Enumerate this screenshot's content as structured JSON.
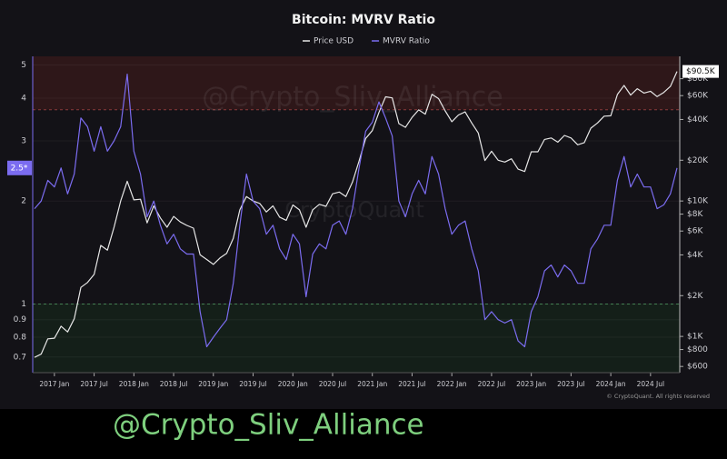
{
  "chart_data": {
    "type": "line",
    "title": "Bitcoin: MVRV Ratio",
    "log_scale": true,
    "grid": true,
    "legend": "top",
    "x": [
      "2016-10",
      "2016-11",
      "2016-12",
      "2017-01",
      "2017-02",
      "2017-03",
      "2017-04",
      "2017-05",
      "2017-06",
      "2017-07",
      "2017-08",
      "2017-09",
      "2017-10",
      "2017-11",
      "2017-12",
      "2018-01",
      "2018-02",
      "2018-03",
      "2018-04",
      "2018-05",
      "2018-06",
      "2018-07",
      "2018-08",
      "2018-09",
      "2018-10",
      "2018-11",
      "2018-12",
      "2019-01",
      "2019-02",
      "2019-03",
      "2019-04",
      "2019-05",
      "2019-06",
      "2019-07",
      "2019-08",
      "2019-09",
      "2019-10",
      "2019-11",
      "2019-12",
      "2020-01",
      "2020-02",
      "2020-03",
      "2020-04",
      "2020-05",
      "2020-06",
      "2020-07",
      "2020-08",
      "2020-09",
      "2020-10",
      "2020-11",
      "2020-12",
      "2021-01",
      "2021-02",
      "2021-03",
      "2021-04",
      "2021-05",
      "2021-06",
      "2021-07",
      "2021-08",
      "2021-09",
      "2021-10",
      "2021-11",
      "2021-12",
      "2022-01",
      "2022-02",
      "2022-03",
      "2022-04",
      "2022-05",
      "2022-06",
      "2022-07",
      "2022-08",
      "2022-09",
      "2022-10",
      "2022-11",
      "2022-12",
      "2023-01",
      "2023-02",
      "2023-03",
      "2023-04",
      "2023-05",
      "2023-06",
      "2023-07",
      "2023-08",
      "2023-09",
      "2023-10",
      "2023-11",
      "2023-12",
      "2024-01",
      "2024-02",
      "2024-03",
      "2024-04",
      "2024-05",
      "2024-06",
      "2024-07",
      "2024-08",
      "2024-09",
      "2024-10",
      "2024-11"
    ],
    "xlim": [
      "2016-10",
      "2024-11"
    ],
    "xticks": [
      {
        "value": "2017-01",
        "label": "2017 Jan"
      },
      {
        "value": "2017-07",
        "label": "2017 Jul"
      },
      {
        "value": "2018-01",
        "label": "2018 Jan"
      },
      {
        "value": "2018-07",
        "label": "2018 Jul"
      },
      {
        "value": "2019-01",
        "label": "2019 Jan"
      },
      {
        "value": "2019-07",
        "label": "2019 Jul"
      },
      {
        "value": "2020-01",
        "label": "2020 Jan"
      },
      {
        "value": "2020-07",
        "label": "2020 Jul"
      },
      {
        "value": "2021-01",
        "label": "2021 Jan"
      },
      {
        "value": "2021-07",
        "label": "2021 Jul"
      },
      {
        "value": "2022-01",
        "label": "2022 Jan"
      },
      {
        "value": "2022-07",
        "label": "2022 Jul"
      },
      {
        "value": "2023-01",
        "label": "2023 Jan"
      },
      {
        "value": "2023-07",
        "label": "2023 Jul"
      },
      {
        "value": "2024-01",
        "label": "2024 Jan"
      },
      {
        "value": "2024-07",
        "label": "2024 Jul"
      }
    ],
    "ylim": [
      0.63,
      5.3
    ],
    "yticks": [
      0.7,
      0.8,
      0.9,
      1,
      2,
      3,
      4,
      5
    ],
    "y2lim": [
      540,
      117000
    ],
    "y2ticks": [
      {
        "value": 600,
        "label": "$600"
      },
      {
        "value": 800,
        "label": "$800"
      },
      {
        "value": 1000,
        "label": "$1K"
      },
      {
        "value": 2000,
        "label": "$2K"
      },
      {
        "value": 4000,
        "label": "$4K"
      },
      {
        "value": 6000,
        "label": "$6K"
      },
      {
        "value": 8000,
        "label": "$8K"
      },
      {
        "value": 10000,
        "label": "$10K"
      },
      {
        "value": 20000,
        "label": "$20K"
      },
      {
        "value": 40000,
        "label": "$40K"
      },
      {
        "value": 60000,
        "label": "$60K"
      },
      {
        "value": 80000,
        "label": "$80K"
      }
    ],
    "zones": [
      {
        "from": 3.7,
        "color": "#2e1719"
      },
      {
        "to": 1,
        "color": "#141f19"
      }
    ],
    "series": [
      {
        "name": "Price USD",
        "color": "#e6e6e6",
        "axis": "y2",
        "values": [
          700,
          740,
          960,
          970,
          1190,
          1080,
          1350,
          2300,
          2500,
          2870,
          4700,
          4340,
          6400,
          10000,
          14000,
          10200,
          10300,
          6900,
          9200,
          7500,
          6400,
          7700,
          7000,
          6600,
          6300,
          4000,
          3700,
          3400,
          3800,
          4100,
          5300,
          8600,
          10800,
          10000,
          9600,
          8300,
          9200,
          7600,
          7200,
          9350,
          8600,
          6400,
          8600,
          9450,
          9140,
          11300,
          11650,
          10780,
          13800,
          19700,
          29000,
          33100,
          45100,
          58800,
          57700,
          37300,
          35000,
          41500,
          47100,
          43800,
          61300,
          57000,
          46300,
          38500,
          43200,
          45500,
          37700,
          31800,
          19900,
          23300,
          20000,
          19400,
          20500,
          17200,
          16500,
          23100,
          23100,
          28500,
          29200,
          27200,
          30500,
          29200,
          26000,
          27000,
          34500,
          37700,
          42300,
          42600,
          61200,
          71300,
          60600,
          67500,
          62700,
          64600,
          59000,
          63300,
          70200,
          90500
        ]
      },
      {
        "name": "MVRV Ratio",
        "color": "#7b6cf0",
        "values": [
          1.9,
          2.0,
          2.3,
          2.2,
          2.5,
          2.1,
          2.4,
          3.5,
          3.3,
          2.8,
          3.3,
          2.8,
          3.0,
          3.3,
          4.7,
          2.8,
          2.4,
          1.8,
          2.0,
          1.7,
          1.5,
          1.6,
          1.45,
          1.4,
          1.4,
          0.95,
          0.75,
          0.8,
          0.85,
          0.9,
          1.15,
          1.7,
          2.4,
          2.0,
          1.9,
          1.6,
          1.7,
          1.45,
          1.35,
          1.6,
          1.5,
          1.05,
          1.4,
          1.5,
          1.45,
          1.7,
          1.75,
          1.6,
          1.9,
          2.5,
          3.2,
          3.4,
          3.9,
          3.5,
          3.1,
          2.0,
          1.8,
          2.1,
          2.3,
          2.1,
          2.7,
          2.4,
          1.9,
          1.6,
          1.7,
          1.75,
          1.45,
          1.25,
          0.9,
          0.95,
          0.9,
          0.88,
          0.9,
          0.78,
          0.75,
          0.95,
          1.05,
          1.25,
          1.3,
          1.2,
          1.3,
          1.25,
          1.15,
          1.15,
          1.45,
          1.55,
          1.7,
          1.7,
          2.3,
          2.7,
          2.2,
          2.4,
          2.2,
          2.2,
          1.9,
          1.95,
          2.1,
          2.5
        ]
      }
    ],
    "annotations": [
      {
        "text": "$90.5K",
        "axis": "y2",
        "value": 90500
      },
      {
        "text": "2.5*",
        "value": 2.5
      }
    ],
    "watermarks": [
      "@Crypto_Sliv_Alliance",
      "CryptoQuant"
    ],
    "copyright": "© CryptoQuant. All rights reserved",
    "caption": "@Crypto_Sliv_Alliance"
  }
}
